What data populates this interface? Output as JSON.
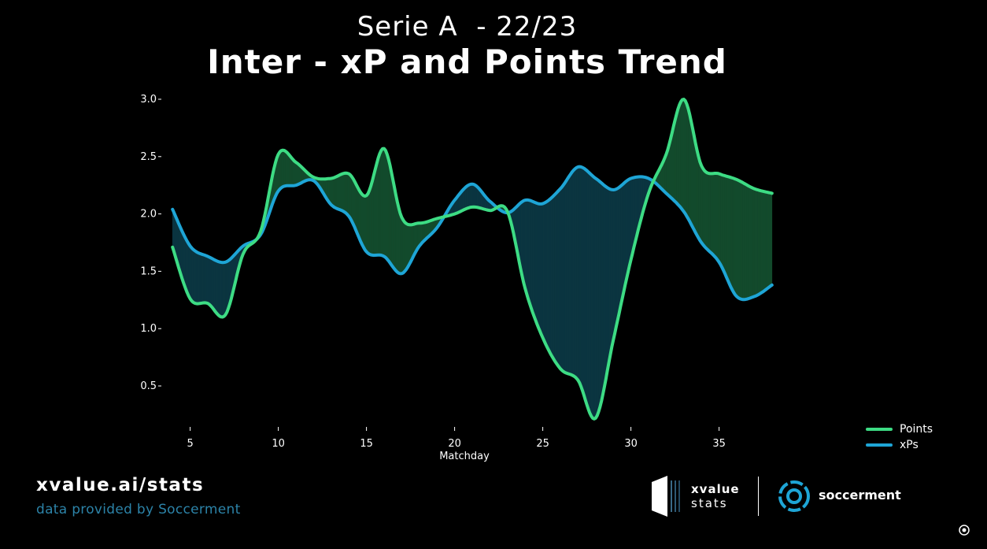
{
  "header": {
    "subtitle": "Serie A  - 22/23",
    "title": "Inter - xP and Points Trend"
  },
  "chart_data": {
    "type": "line",
    "xlabel": "Matchday",
    "ylabel": "",
    "xlim": [
      3.5,
      38.5
    ],
    "ylim": [
      0.2,
      3.0
    ],
    "xticks": [
      5,
      10,
      15,
      20,
      25,
      30,
      35
    ],
    "yticks": [
      0.5,
      1.0,
      1.5,
      2.0,
      2.5,
      3.0
    ],
    "ytick_labels": [
      "0.5",
      "1.0",
      "1.5",
      "2.0",
      "2.5",
      "3.0"
    ],
    "fill_between": true,
    "x": [
      4,
      5,
      6,
      7,
      8,
      9,
      10,
      11,
      12,
      13,
      14,
      15,
      16,
      17,
      18,
      19,
      20,
      21,
      22,
      23,
      24,
      25,
      26,
      27,
      28,
      29,
      30,
      31,
      32,
      33,
      34,
      35,
      36,
      37,
      38
    ],
    "series": [
      {
        "name": "Points",
        "color": "#3ddc84",
        "values": [
          1.71,
          1.26,
          1.22,
          1.12,
          1.65,
          1.85,
          2.52,
          2.45,
          2.32,
          2.31,
          2.35,
          2.16,
          2.57,
          1.97,
          1.92,
          1.96,
          2.0,
          2.06,
          2.03,
          2.02,
          1.35,
          0.92,
          0.65,
          0.55,
          0.22,
          0.9,
          1.6,
          2.18,
          2.52,
          3.0,
          2.42,
          2.35,
          2.3,
          2.22,
          2.18
        ]
      },
      {
        "name": "xPs",
        "color": "#1ea5d6",
        "values": [
          2.04,
          1.72,
          1.63,
          1.58,
          1.72,
          1.82,
          2.2,
          2.25,
          2.29,
          2.08,
          1.98,
          1.67,
          1.63,
          1.48,
          1.72,
          1.88,
          2.12,
          2.26,
          2.11,
          2.01,
          2.12,
          2.09,
          2.22,
          2.41,
          2.31,
          2.21,
          2.31,
          2.31,
          2.18,
          2.02,
          1.75,
          1.58,
          1.28,
          1.28,
          1.38
        ]
      }
    ],
    "fill_colors": {
      "points_above": "#134a2c",
      "xps_above": "#0b3540"
    },
    "legend_position": "bottom-right"
  },
  "footer": {
    "site_url": "xvalue.ai/stats",
    "credit": "data provided by Soccerment",
    "xvalue_line1": "xvalue",
    "xvalue_line2": "stats",
    "soccerment_name": "soccerment",
    "accent_color": "#2c83a8",
    "icons": [
      "xvalue-logo-icon",
      "soccerment-logo-icon",
      "corner-settings-icon"
    ]
  }
}
